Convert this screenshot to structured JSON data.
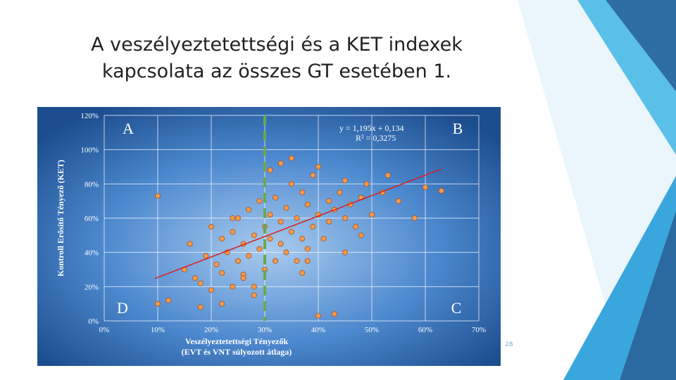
{
  "slide": {
    "title_lines": [
      "A veszélyeztetettségi és a KET indexek",
      "kapcsolata az összes GT esetében 1."
    ],
    "page_number": "28"
  },
  "chart_data": {
    "type": "scatter",
    "x_label_lines": [
      "Veszélyeztetettségi Tényezők",
      "(EVT és VNT súlyozott átlaga)"
    ],
    "y_label": "Kontroll Erősítő Tényező (KET)",
    "quadrant_labels": [
      "A",
      "B",
      "C",
      "D"
    ],
    "equation": "y = 1,195x + 0,134",
    "r_squared": "R² = 0,3275",
    "xlim": [
      0,
      70
    ],
    "ylim": [
      0,
      120
    ],
    "xticks": [
      {
        "value": 0,
        "label": "0%"
      },
      {
        "value": 10,
        "label": "10%"
      },
      {
        "value": 20,
        "label": "20%"
      },
      {
        "value": 30,
        "label": "30%"
      },
      {
        "value": 40,
        "label": "40%"
      },
      {
        "value": 50,
        "label": "50%"
      },
      {
        "value": 60,
        "label": "60%"
      },
      {
        "value": 70,
        "label": "70%"
      }
    ],
    "yticks": [
      {
        "value": 0,
        "label": "0%"
      },
      {
        "value": 20,
        "label": "20%"
      },
      {
        "value": 40,
        "label": "40%"
      },
      {
        "value": 60,
        "label": "60%"
      },
      {
        "value": 80,
        "label": "80%"
      },
      {
        "value": 100,
        "label": "100%"
      },
      {
        "value": 120,
        "label": "120%"
      }
    ],
    "grid": true,
    "series": [
      {
        "color": "#f39a4b",
        "x": [
          10,
          12,
          10,
          15,
          16,
          17,
          18,
          19,
          20,
          20,
          21,
          22,
          22,
          23,
          24,
          24,
          25,
          25,
          26,
          26,
          27,
          27,
          28,
          28,
          29,
          29,
          30,
          30,
          31,
          31,
          32,
          32,
          33,
          33,
          34,
          34,
          35,
          35,
          36,
          36,
          37,
          37,
          38,
          38,
          39,
          39,
          40,
          40,
          41,
          42,
          42,
          43,
          44,
          45,
          45,
          46,
          47,
          48,
          49,
          50,
          52,
          53,
          55,
          58,
          60,
          63,
          43,
          40,
          18,
          22,
          26,
          33,
          35,
          28,
          31,
          38,
          24,
          45,
          48,
          37
        ],
        "values": [
          73,
          12,
          10,
          30,
          45,
          25,
          22,
          38,
          55,
          18,
          33,
          48,
          28,
          40,
          52,
          20,
          35,
          60,
          45,
          27,
          38,
          65,
          50,
          15,
          42,
          70,
          55,
          30,
          62,
          48,
          35,
          72,
          58,
          45,
          66,
          40,
          52,
          80,
          60,
          35,
          75,
          48,
          68,
          42,
          85,
          55,
          62,
          90,
          48,
          70,
          58,
          65,
          75,
          60,
          82,
          68,
          55,
          72,
          80,
          62,
          75,
          85,
          70,
          60,
          78,
          76,
          4,
          3,
          8,
          10,
          25,
          92,
          95,
          20,
          88,
          35,
          60,
          40,
          50,
          28
        ]
      }
    ],
    "trendline": {
      "color": "#d62020",
      "x": [
        9.5,
        63
      ],
      "values": [
        24.8,
        88.7
      ]
    },
    "vline": {
      "x": 30,
      "color": "#6aa84f"
    }
  }
}
